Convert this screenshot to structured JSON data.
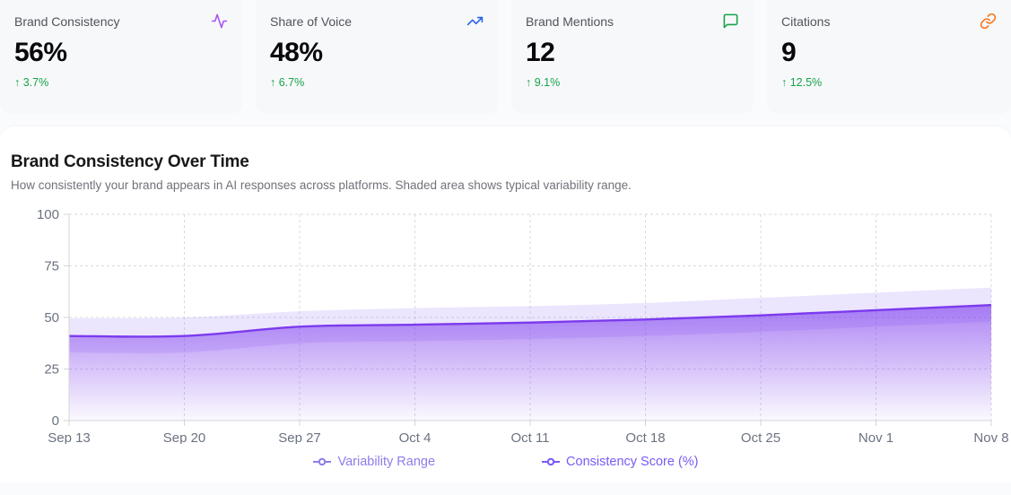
{
  "kpi_cards": [
    {
      "label": "Brand Consistency",
      "value": "56%",
      "delta": "↑ 3.7%",
      "icon": "activity-icon",
      "icon_color": "#a855f7"
    },
    {
      "label": "Share of Voice",
      "value": "48%",
      "delta": "↑ 6.7%",
      "icon": "trending-up-icon",
      "icon_color": "#2563eb"
    },
    {
      "label": "Brand Mentions",
      "value": "12",
      "delta": "↑ 9.1%",
      "icon": "message-square-icon",
      "icon_color": "#16a34a"
    },
    {
      "label": "Citations",
      "value": "9",
      "delta": "↑ 12.5%",
      "icon": "link-icon",
      "icon_color": "#f97316"
    }
  ],
  "chart_section": {
    "title": "Brand Consistency Over Time",
    "subtitle": "How consistently your brand appears in AI responses across platforms. Shaded area shows typical variability range."
  },
  "chart_data": {
    "type": "area",
    "title": "Brand Consistency Over Time",
    "x": [
      "Sep 13",
      "Sep 20",
      "Sep 27",
      "Oct 4",
      "Oct 11",
      "Oct 18",
      "Oct 25",
      "Nov 1",
      "Nov 8"
    ],
    "series": [
      {
        "name": "Variability Range",
        "type": "band",
        "upper": [
          49.5,
          50,
          53,
          54.5,
          55.5,
          57,
          59.5,
          62,
          64.5
        ],
        "lower": [
          33,
          33,
          37.5,
          38.5,
          39.5,
          41,
          43,
          45.5,
          48
        ],
        "color": "#8b5cf6",
        "fill_opacity": 0.16
      },
      {
        "name": "Consistency Score (%)",
        "type": "line-area",
        "values": [
          41,
          41,
          45.5,
          46.5,
          47.5,
          49,
          51,
          53.5,
          56
        ],
        "color": "#7c3aed"
      }
    ],
    "ylim": [
      0,
      100
    ],
    "yticks": [
      0,
      25,
      50,
      75,
      100
    ],
    "grid": "dashed",
    "legend_position": "bottom",
    "legend": [
      {
        "label": "Variability Range",
        "color": "#8e7ce8"
      },
      {
        "label": "Consistency Score (%)",
        "color": "#7a5af5"
      }
    ]
  }
}
